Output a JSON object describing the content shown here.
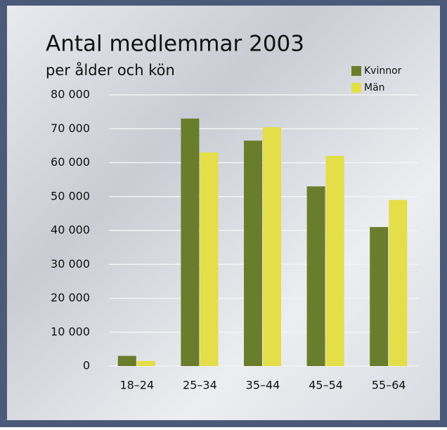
{
  "chart_data": {
    "type": "bar",
    "title": "Antal medlemmar 2003",
    "subtitle": "per ålder och kön",
    "categories": [
      "18–24",
      "25–34",
      "35–44",
      "45–54",
      "55–64"
    ],
    "series": [
      {
        "name": "Kvinnor",
        "color": "#6a7d2c",
        "values": [
          3000,
          73000,
          66500,
          53000,
          41000
        ]
      },
      {
        "name": "Män",
        "color": "#e4de48",
        "values": [
          1500,
          63000,
          70500,
          62000,
          49000
        ]
      }
    ],
    "ylim": [
      0,
      80000
    ],
    "yticks": [
      0,
      {
        "value": 10000,
        "label": "10 000"
      },
      {
        "value": 20000,
        "label": "20 000"
      },
      {
        "value": 30000,
        "label": "30 000"
      },
      {
        "value": 40000,
        "label": "40 000"
      },
      {
        "value": 50000,
        "label": "50 000"
      },
      {
        "value": 60000,
        "label": "60 000"
      },
      {
        "value": 70000,
        "label": "70 000"
      },
      {
        "value": 80000,
        "label": "80 000"
      }
    ],
    "grid": true,
    "legend": "top-right"
  }
}
